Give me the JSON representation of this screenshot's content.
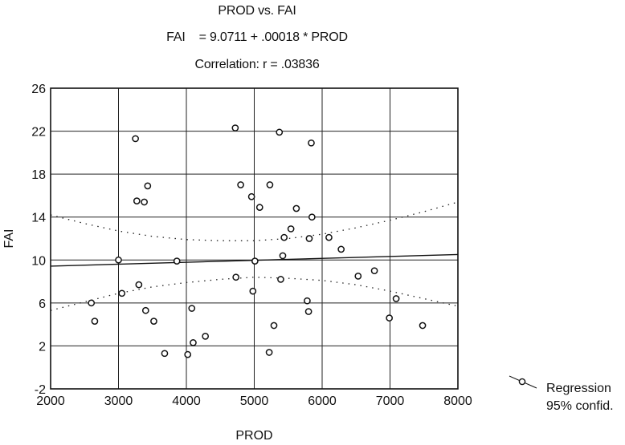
{
  "chart_data": {
    "type": "scatter",
    "title": "PROD vs. FAI",
    "equation": {
      "lhs": "FAI",
      "rhs": "= 9.0711 + .00018 * PROD"
    },
    "subtitle": "Correlation: r = .03836",
    "xlabel": "PROD",
    "ylabel": "FAI",
    "xlim": [
      2000,
      8000
    ],
    "ylim": [
      -2,
      26
    ],
    "xticks": [
      2000,
      3000,
      4000,
      5000,
      6000,
      7000,
      8000
    ],
    "yticks": [
      -2,
      2,
      6,
      10,
      14,
      18,
      22,
      26
    ],
    "grid": true,
    "legend": {
      "placement": "bottom-right",
      "entries": [
        "Regression",
        "95% confid."
      ]
    },
    "regression": {
      "intercept": 9.0711,
      "slope": 0.00018
    },
    "confidence_band": {
      "x": [
        2000,
        2500,
        3000,
        3500,
        4000,
        4500,
        5000,
        5500,
        6000,
        6500,
        7000,
        7500,
        8000
      ],
      "upper": [
        14.2,
        13.4,
        12.7,
        12.2,
        11.9,
        11.8,
        11.8,
        12.0,
        12.4,
        13.0,
        13.7,
        14.5,
        15.4
      ],
      "lower": [
        5.3,
        6.1,
        6.9,
        7.5,
        7.9,
        8.2,
        8.4,
        8.3,
        8.1,
        7.7,
        7.1,
        6.4,
        5.7
      ]
    },
    "points": [
      [
        2600,
        6.0
      ],
      [
        2650,
        4.3
      ],
      [
        3000,
        10.0
      ],
      [
        3050,
        6.9
      ],
      [
        3250,
        21.3
      ],
      [
        3270,
        15.5
      ],
      [
        3300,
        7.7
      ],
      [
        3380,
        15.4
      ],
      [
        3400,
        5.3
      ],
      [
        3430,
        16.9
      ],
      [
        3520,
        4.3
      ],
      [
        3680,
        1.3
      ],
      [
        3860,
        9.9
      ],
      [
        4020,
        1.2
      ],
      [
        4080,
        5.5
      ],
      [
        4100,
        2.3
      ],
      [
        4280,
        2.9
      ],
      [
        4720,
        22.3
      ],
      [
        4730,
        8.4
      ],
      [
        4800,
        17.0
      ],
      [
        4960,
        15.9
      ],
      [
        4980,
        7.1
      ],
      [
        5010,
        9.9
      ],
      [
        5080,
        14.9
      ],
      [
        5220,
        1.4
      ],
      [
        5230,
        17.0
      ],
      [
        5290,
        3.9
      ],
      [
        5370,
        21.9
      ],
      [
        5390,
        8.2
      ],
      [
        5420,
        10.4
      ],
      [
        5440,
        12.1
      ],
      [
        5540,
        12.9
      ],
      [
        5620,
        14.8
      ],
      [
        5780,
        6.2
      ],
      [
        5800,
        5.2
      ],
      [
        5810,
        12.0
      ],
      [
        5840,
        20.9
      ],
      [
        5850,
        14.0
      ],
      [
        6100,
        12.1
      ],
      [
        6280,
        11.0
      ],
      [
        6530,
        8.5
      ],
      [
        6770,
        9.0
      ],
      [
        6990,
        4.6
      ],
      [
        7090,
        6.4
      ],
      [
        7480,
        3.9
      ]
    ]
  }
}
